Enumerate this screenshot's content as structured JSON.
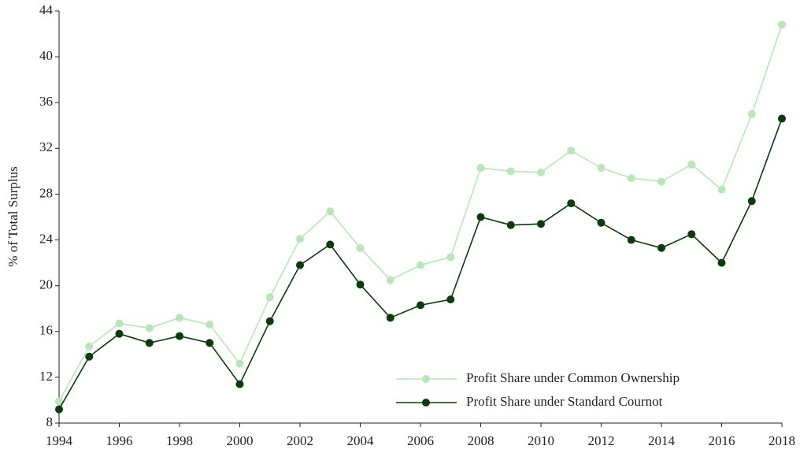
{
  "chart_data": {
    "type": "line",
    "y_label": "% of Total Surplus",
    "x": [
      1994,
      1995,
      1996,
      1997,
      1998,
      1999,
      2000,
      2001,
      2002,
      2003,
      2004,
      2005,
      2006,
      2007,
      2008,
      2009,
      2010,
      2011,
      2012,
      2013,
      2014,
      2015,
      2016,
      2017,
      2018
    ],
    "series": [
      {
        "name": "Profit Share under Common Ownership",
        "color": "#b8e6b8",
        "values": [
          9.9,
          14.7,
          16.7,
          16.3,
          17.2,
          16.6,
          13.2,
          19.0,
          24.1,
          26.5,
          23.3,
          20.5,
          21.8,
          22.5,
          30.3,
          30.0,
          29.9,
          31.8,
          30.3,
          29.4,
          29.1,
          30.6,
          28.4,
          35.0,
          42.8
        ]
      },
      {
        "name": "Profit Share under Standard Cournot",
        "color": "#0b3a0b",
        "values": [
          9.2,
          13.8,
          15.8,
          15.0,
          15.6,
          15.0,
          11.4,
          16.9,
          21.8,
          23.6,
          20.1,
          17.2,
          18.3,
          18.8,
          26.0,
          25.3,
          25.4,
          27.2,
          25.5,
          24.0,
          23.3,
          24.5,
          22.0,
          27.4,
          34.6
        ]
      }
    ],
    "xlim": [
      1994,
      2018
    ],
    "xticks": [
      1994,
      1996,
      1998,
      2000,
      2002,
      2004,
      2006,
      2008,
      2010,
      2012,
      2014,
      2016,
      2018
    ],
    "ylim": [
      8,
      44
    ],
    "yticks": [
      8,
      12,
      16,
      20,
      24,
      28,
      32,
      36,
      40,
      44
    ],
    "legend": "lower right",
    "grid": false
  }
}
